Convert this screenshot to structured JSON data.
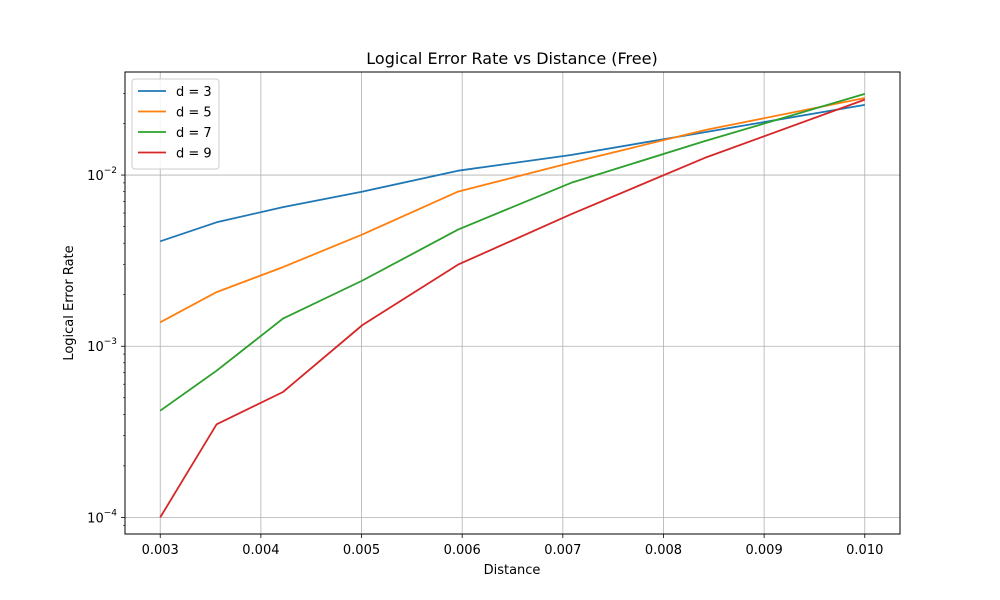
{
  "chart_data": {
    "type": "line",
    "title": "Logical Error Rate vs Distance (Free)",
    "xlabel": "Distance",
    "ylabel": "Logical Error Rate",
    "xlim": [
      0.00265,
      0.01035
    ],
    "ylim": [
      8e-05,
      0.04
    ],
    "yscale": "log",
    "grid": true,
    "legend_position": "upper-left",
    "x_ticks": [
      "0.003",
      "0.004",
      "0.005",
      "0.006",
      "0.007",
      "0.008",
      "0.009",
      "0.010"
    ],
    "x_tick_values": [
      0.003,
      0.004,
      0.005,
      0.006,
      0.007,
      0.008,
      0.009,
      0.01
    ],
    "y_ticks": [
      {
        "value": 0.0001,
        "base": "10",
        "exp": "−4"
      },
      {
        "value": 0.001,
        "base": "10",
        "exp": "−3"
      },
      {
        "value": 0.01,
        "base": "10",
        "exp": "−2"
      }
    ],
    "series": [
      {
        "name": "d = 3",
        "color": "#1f77b4",
        "x": [
          0.003,
          0.00356,
          0.00422,
          0.00501,
          0.00596,
          0.00708,
          0.00841,
          0.01
        ],
        "y": [
          0.0041,
          0.0053,
          0.0065,
          0.008,
          0.0106,
          0.0131,
          0.0178,
          0.0257
        ]
      },
      {
        "name": "d = 5",
        "color": "#ff7f0e",
        "x": [
          0.003,
          0.00356,
          0.00422,
          0.00501,
          0.00596,
          0.00708,
          0.00841,
          0.01
        ],
        "y": [
          0.00138,
          0.00207,
          0.0029,
          0.0045,
          0.008,
          0.0118,
          0.0183,
          0.0282
        ]
      },
      {
        "name": "d = 7",
        "color": "#2ca02c",
        "x": [
          0.003,
          0.00356,
          0.00422,
          0.00501,
          0.00596,
          0.00708,
          0.00841,
          0.01
        ],
        "y": [
          0.00042,
          0.00072,
          0.00145,
          0.00242,
          0.0048,
          0.009,
          0.0158,
          0.0298
        ]
      },
      {
        "name": "d = 9",
        "color": "#d62728",
        "x": [
          0.003,
          0.00356,
          0.00422,
          0.00501,
          0.00596,
          0.00708,
          0.00841,
          0.01
        ],
        "y": [
          0.0001,
          0.00035,
          0.00054,
          0.00133,
          0.003,
          0.0059,
          0.0126,
          0.0276
        ]
      }
    ]
  }
}
